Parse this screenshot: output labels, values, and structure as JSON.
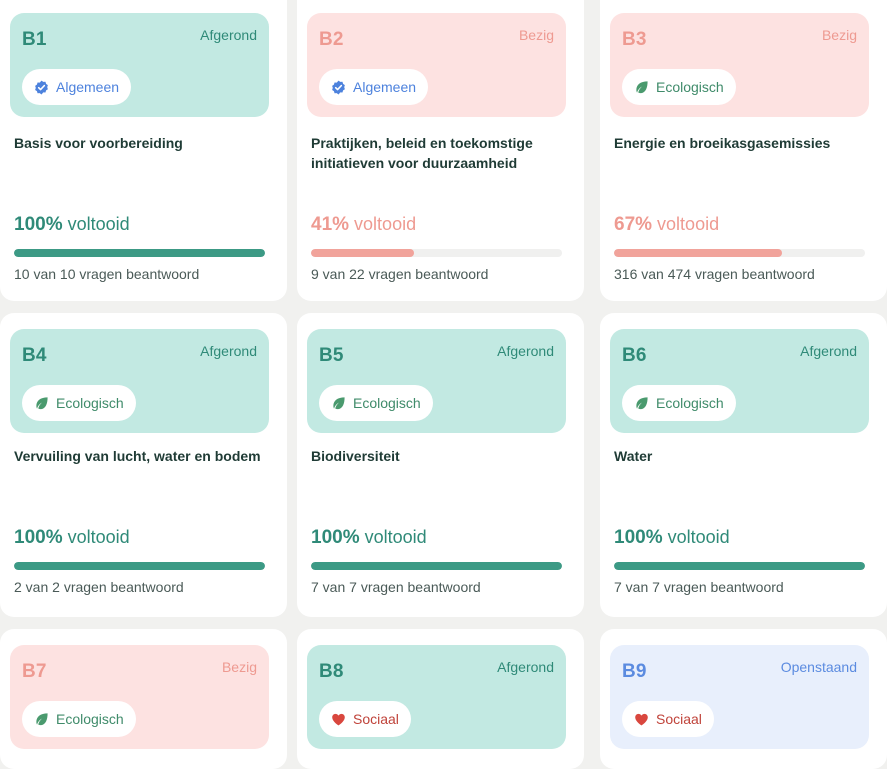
{
  "cards": [
    {
      "code": "B1",
      "status": "Afgerond",
      "state": "done",
      "category": "Algemeen",
      "category_icon": "verified-badge-icon",
      "title": "Basis voor voorbereiding",
      "percent_label": "100%",
      "done_label": "voltooid",
      "progress": 1.0,
      "answered": "10 van 10 vragen beantwoord"
    },
    {
      "code": "B2",
      "status": "Bezig",
      "state": "busy",
      "category": "Algemeen",
      "category_icon": "verified-badge-icon",
      "title": "Praktijken, beleid en toekomstige initiatieven voor duurzaamheid",
      "percent_label": "41%",
      "done_label": "voltooid",
      "progress": 0.41,
      "answered": "9 van 22 vragen beantwoord"
    },
    {
      "code": "B3",
      "status": "Bezig",
      "state": "busy",
      "category": "Ecologisch",
      "category_icon": "leaf-icon",
      "title": "Energie en broeikasgasemissies",
      "percent_label": "67%",
      "done_label": "voltooid",
      "progress": 0.67,
      "answered": "316 van 474 vragen beantwoord"
    },
    {
      "code": "B4",
      "status": "Afgerond",
      "state": "done",
      "category": "Ecologisch",
      "category_icon": "leaf-icon",
      "title": "Vervuiling van lucht, water en bodem",
      "percent_label": "100%",
      "done_label": "voltooid",
      "progress": 1.0,
      "answered": "2 van 2 vragen beantwoord"
    },
    {
      "code": "B5",
      "status": "Afgerond",
      "state": "done",
      "category": "Ecologisch",
      "category_icon": "leaf-icon",
      "title": "Biodiversiteit",
      "percent_label": "100%",
      "done_label": "voltooid",
      "progress": 1.0,
      "answered": "7 van 7 vragen beantwoord"
    },
    {
      "code": "B6",
      "status": "Afgerond",
      "state": "done",
      "category": "Ecologisch",
      "category_icon": "leaf-icon",
      "title": "Water",
      "percent_label": "100%",
      "done_label": "voltooid",
      "progress": 1.0,
      "answered": "7 van 7 vragen beantwoord"
    },
    {
      "code": "B7",
      "status": "Bezig",
      "state": "busy",
      "category": "Ecologisch",
      "category_icon": "leaf-icon"
    },
    {
      "code": "B8",
      "status": "Afgerond",
      "state": "done",
      "category": "Sociaal",
      "category_icon": "heart-icon"
    },
    {
      "code": "B9",
      "status": "Openstaand",
      "state": "open",
      "category": "Sociaal",
      "category_icon": "heart-icon"
    }
  ]
}
